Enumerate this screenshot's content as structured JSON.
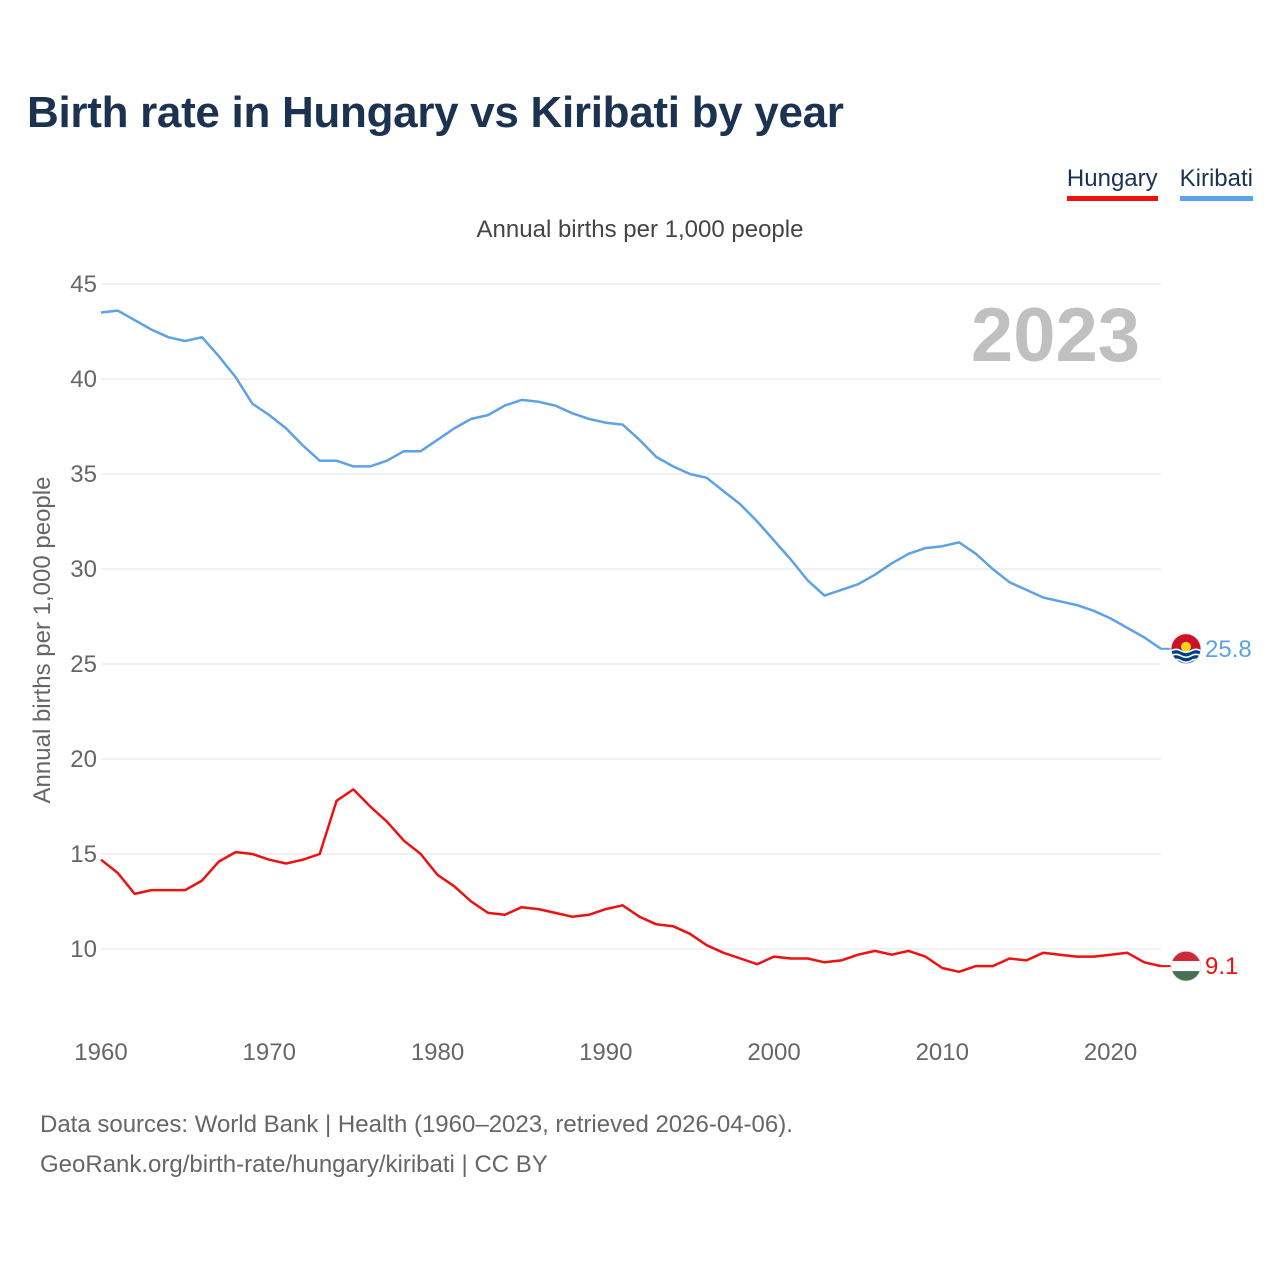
{
  "title": "Birth rate in Hungary vs Kiribati by year",
  "legend": {
    "hungary": "Hungary",
    "kiribati": "Kiribati"
  },
  "subtitle": "Annual births per 1,000 people",
  "year_badge": "2023",
  "footer": {
    "line1": "Data sources: World Bank | Health (1960–2023, retrieved 2026-04-06).",
    "line2": "GeoRank.org/birth-rate/hungary/kiribati | CC BY"
  },
  "colors": {
    "hungary": "#ee1111",
    "kiribati": "#5da2e6",
    "grid": "#e3e3e3",
    "axis_text": "#666666",
    "year_badge": "#c0c0c0"
  },
  "chart_data": {
    "type": "line",
    "title": "Birth rate in Hungary vs Kiribati by year",
    "xlabel": "",
    "ylabel": "Annual births per 1,000 people",
    "xlim": [
      1960,
      2023
    ],
    "ylim": [
      5,
      45
    ],
    "yticks": [
      10,
      15,
      20,
      25,
      30,
      35,
      40,
      45
    ],
    "xticks": [
      1960,
      1970,
      1980,
      1990,
      2000,
      2010,
      2020
    ],
    "grid": true,
    "legend_position": "top-right",
    "x": [
      1960,
      1961,
      1962,
      1963,
      1964,
      1965,
      1966,
      1967,
      1968,
      1969,
      1970,
      1971,
      1972,
      1973,
      1974,
      1975,
      1976,
      1977,
      1978,
      1979,
      1980,
      1981,
      1982,
      1983,
      1984,
      1985,
      1986,
      1987,
      1988,
      1989,
      1990,
      1991,
      1992,
      1993,
      1994,
      1995,
      1996,
      1997,
      1998,
      1999,
      2000,
      2001,
      2002,
      2003,
      2004,
      2005,
      2006,
      2007,
      2008,
      2009,
      2010,
      2011,
      2012,
      2013,
      2014,
      2015,
      2016,
      2017,
      2018,
      2019,
      2020,
      2021,
      2022,
      2023
    ],
    "series": [
      {
        "name": "Kiribati",
        "end_label": "25.8",
        "values": [
          43.5,
          43.6,
          43.1,
          42.6,
          42.2,
          42.0,
          42.2,
          41.2,
          40.1,
          38.7,
          38.1,
          37.4,
          36.5,
          35.7,
          35.7,
          35.4,
          35.4,
          35.7,
          36.2,
          36.2,
          36.8,
          37.4,
          37.9,
          38.1,
          38.6,
          38.9,
          38.8,
          38.6,
          38.2,
          37.9,
          37.7,
          37.6,
          36.8,
          35.9,
          35.4,
          35.0,
          34.8,
          34.1,
          33.4,
          32.5,
          31.5,
          30.5,
          29.4,
          28.6,
          28.9,
          29.2,
          29.7,
          30.3,
          30.8,
          31.1,
          31.2,
          31.4,
          30.8,
          30.0,
          29.3,
          28.9,
          28.5,
          28.3,
          28.1,
          27.8,
          27.4,
          26.9,
          26.4,
          25.8
        ]
      },
      {
        "name": "Hungary",
        "end_label": "9.1",
        "values": [
          14.7,
          14.0,
          12.9,
          13.1,
          13.1,
          13.1,
          13.6,
          14.6,
          15.1,
          15.0,
          14.7,
          14.5,
          14.7,
          15.0,
          17.8,
          18.4,
          17.5,
          16.7,
          15.7,
          15.0,
          13.9,
          13.3,
          12.5,
          11.9,
          11.8,
          12.2,
          12.1,
          11.9,
          11.7,
          11.8,
          12.1,
          12.3,
          11.7,
          11.3,
          11.2,
          10.8,
          10.2,
          9.8,
          9.5,
          9.2,
          9.6,
          9.5,
          9.5,
          9.3,
          9.4,
          9.7,
          9.9,
          9.7,
          9.9,
          9.6,
          9.0,
          8.8,
          9.1,
          9.1,
          9.5,
          9.4,
          9.8,
          9.7,
          9.6,
          9.6,
          9.7,
          9.8,
          9.3,
          9.1
        ]
      }
    ]
  }
}
